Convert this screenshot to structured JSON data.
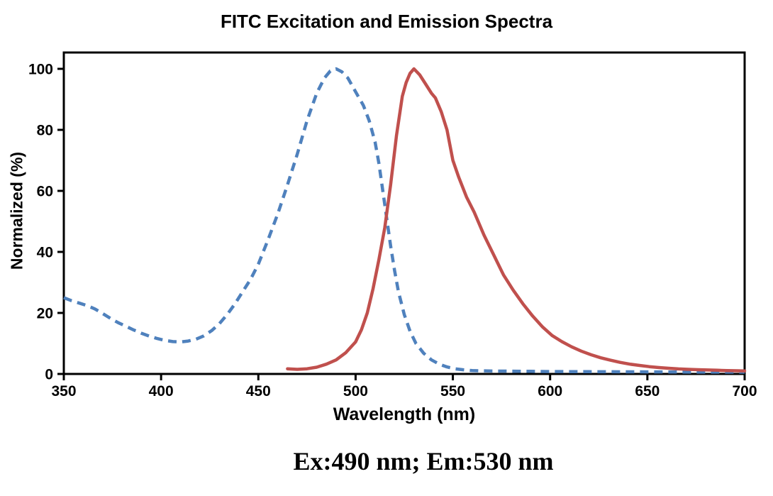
{
  "caption": "Ex:490 nm; Em:530 nm",
  "colors": {
    "excitation": "#4f81bd",
    "emission": "#c0504d",
    "axis": "#000000",
    "background": "#ffffff"
  },
  "chart_data": {
    "type": "line",
    "title": "FITC Excitation and Emission Spectra",
    "xlabel": "Wavelength (nm)",
    "ylabel": "Normalized (%)",
    "xlim": [
      350,
      700
    ],
    "ylim": [
      0,
      105
    ],
    "xticks": [
      350,
      400,
      450,
      500,
      550,
      600,
      650,
      700
    ],
    "yticks": [
      0,
      20,
      40,
      60,
      80,
      100
    ],
    "grid": false,
    "legend": "none",
    "plot_border": "full-box",
    "series": [
      {
        "name": "Excitation",
        "peak_nm": 490,
        "color": "#4f81bd",
        "style": "dashed",
        "points": [
          [
            350,
            25
          ],
          [
            354,
            24
          ],
          [
            358,
            23.2
          ],
          [
            362,
            22.4
          ],
          [
            366,
            21.3
          ],
          [
            370,
            19.8
          ],
          [
            374,
            18.2
          ],
          [
            378,
            16.8
          ],
          [
            382,
            15.6
          ],
          [
            386,
            14.4
          ],
          [
            390,
            13.3
          ],
          [
            394,
            12.4
          ],
          [
            398,
            11.6
          ],
          [
            402,
            11
          ],
          [
            406,
            10.6
          ],
          [
            410,
            10.5
          ],
          [
            414,
            10.8
          ],
          [
            418,
            11.4
          ],
          [
            422,
            12.5
          ],
          [
            426,
            14.2
          ],
          [
            430,
            16.5
          ],
          [
            434,
            19.5
          ],
          [
            438,
            23
          ],
          [
            442,
            27
          ],
          [
            446,
            31
          ],
          [
            450,
            36
          ],
          [
            455,
            44
          ],
          [
            460,
            52.5
          ],
          [
            465,
            62
          ],
          [
            470,
            72
          ],
          [
            475,
            83
          ],
          [
            480,
            92
          ],
          [
            484,
            97
          ],
          [
            487,
            99.3
          ],
          [
            490,
            100
          ],
          [
            493,
            99
          ],
          [
            496,
            97
          ],
          [
            500,
            92.5
          ],
          [
            504,
            88
          ],
          [
            507,
            83
          ],
          [
            510,
            76
          ],
          [
            512,
            69
          ],
          [
            514,
            60
          ],
          [
            516,
            51
          ],
          [
            518,
            42
          ],
          [
            520,
            34
          ],
          [
            522,
            27
          ],
          [
            525,
            19.5
          ],
          [
            528,
            14
          ],
          [
            531,
            10
          ],
          [
            535,
            6.8
          ],
          [
            539,
            4.6
          ],
          [
            543,
            3.2
          ],
          [
            547,
            2.3
          ],
          [
            551,
            1.7
          ],
          [
            555,
            1.4
          ],
          [
            560,
            1.1
          ],
          [
            570,
            0.95
          ],
          [
            580,
            0.9
          ],
          [
            590,
            0.85
          ],
          [
            600,
            0.8
          ],
          [
            620,
            0.75
          ],
          [
            640,
            0.7
          ],
          [
            660,
            0.65
          ],
          [
            680,
            0.6
          ],
          [
            700,
            0.6
          ]
        ]
      },
      {
        "name": "Emission",
        "peak_nm": 530,
        "color": "#c0504d",
        "style": "solid",
        "points": [
          [
            465,
            1.7
          ],
          [
            470,
            1.5
          ],
          [
            475,
            1.7
          ],
          [
            480,
            2.2
          ],
          [
            485,
            3.2
          ],
          [
            490,
            4.6
          ],
          [
            495,
            7
          ],
          [
            500,
            10.5
          ],
          [
            503,
            14.5
          ],
          [
            506,
            20
          ],
          [
            509,
            28
          ],
          [
            512,
            37.5
          ],
          [
            515,
            48
          ],
          [
            518,
            62
          ],
          [
            521,
            78
          ],
          [
            524,
            91
          ],
          [
            526,
            95.5
          ],
          [
            528,
            98.5
          ],
          [
            530,
            100
          ],
          [
            533,
            98
          ],
          [
            536,
            95
          ],
          [
            539,
            92
          ],
          [
            541,
            90.5
          ],
          [
            544,
            86
          ],
          [
            547,
            80
          ],
          [
            550,
            70
          ],
          [
            553,
            64.5
          ],
          [
            557,
            58
          ],
          [
            561,
            53
          ],
          [
            566,
            45.5
          ],
          [
            571,
            39
          ],
          [
            576,
            32.5
          ],
          [
            581,
            27.5
          ],
          [
            586,
            23
          ],
          [
            591,
            19
          ],
          [
            596,
            15.5
          ],
          [
            601,
            12.6
          ],
          [
            606,
            10.6
          ],
          [
            611,
            8.9
          ],
          [
            616,
            7.5
          ],
          [
            621,
            6.3
          ],
          [
            626,
            5.3
          ],
          [
            631,
            4.5
          ],
          [
            636,
            3.8
          ],
          [
            641,
            3.2
          ],
          [
            646,
            2.8
          ],
          [
            651,
            2.4
          ],
          [
            656,
            2.1
          ],
          [
            661,
            1.85
          ],
          [
            666,
            1.65
          ],
          [
            671,
            1.5
          ],
          [
            676,
            1.4
          ],
          [
            681,
            1.3
          ],
          [
            686,
            1.2
          ],
          [
            691,
            1.1
          ],
          [
            696,
            1.05
          ],
          [
            700,
            1
          ]
        ]
      }
    ]
  }
}
